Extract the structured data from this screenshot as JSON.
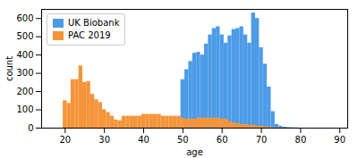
{
  "chart_data": {
    "type": "bar",
    "xlabel": "age",
    "ylabel": "count",
    "x": [
      14,
      15,
      16,
      17,
      18,
      19,
      20,
      21,
      22,
      23,
      24,
      25,
      26,
      27,
      28,
      29,
      30,
      31,
      32,
      33,
      34,
      35,
      36,
      37,
      38,
      39,
      40,
      41,
      42,
      43,
      44,
      45,
      46,
      47,
      48,
      49,
      50,
      51,
      52,
      53,
      54,
      55,
      56,
      57,
      58,
      59,
      60,
      61,
      62,
      63,
      64,
      65,
      66,
      67,
      68,
      69,
      70,
      71,
      72,
      73,
      74,
      75,
      76,
      77,
      78,
      79,
      80,
      81,
      82,
      83,
      84,
      85,
      86,
      87,
      88,
      89,
      90
    ],
    "series": [
      {
        "name": "UK Biobank",
        "color": "#4C9BE8",
        "values": [
          0,
          0,
          0,
          0,
          0,
          0,
          0,
          0,
          0,
          0,
          0,
          0,
          0,
          0,
          0,
          0,
          0,
          0,
          0,
          0,
          0,
          0,
          0,
          0,
          0,
          0,
          0,
          0,
          0,
          0,
          0,
          0,
          0,
          0,
          5,
          10,
          265,
          320,
          365,
          410,
          415,
          400,
          460,
          510,
          545,
          555,
          510,
          465,
          505,
          540,
          545,
          555,
          510,
          465,
          630,
          600,
          440,
          350,
          225,
          90,
          20,
          10,
          5,
          3,
          2,
          1,
          0,
          0,
          0,
          0,
          0,
          0,
          0,
          0,
          0,
          0,
          0
        ]
      },
      {
        "name": "PAC 2019",
        "color": "#F5943A",
        "values": [
          0,
          0,
          0,
          0,
          0,
          0,
          150,
          135,
          265,
          265,
          340,
          250,
          255,
          185,
          155,
          140,
          100,
          85,
          65,
          45,
          40,
          65,
          65,
          65,
          65,
          65,
          75,
          75,
          75,
          75,
          75,
          65,
          65,
          65,
          65,
          65,
          55,
          50,
          50,
          50,
          55,
          55,
          55,
          55,
          55,
          55,
          50,
          50,
          35,
          30,
          25,
          20,
          20,
          15,
          15,
          12,
          10,
          8,
          5,
          3,
          2,
          1,
          1,
          0,
          0,
          0,
          0,
          0,
          0,
          0,
          0,
          0,
          0,
          0,
          0,
          0,
          0
        ]
      }
    ],
    "xlim": [
      14,
      92
    ],
    "ylim": [
      0,
      650
    ],
    "xticks": [
      20,
      30,
      40,
      50,
      60,
      70,
      80,
      90
    ],
    "yticks": [
      0,
      100,
      200,
      300,
      400,
      500,
      600
    ],
    "stacked": false,
    "grid": false,
    "legend": "upper left"
  }
}
